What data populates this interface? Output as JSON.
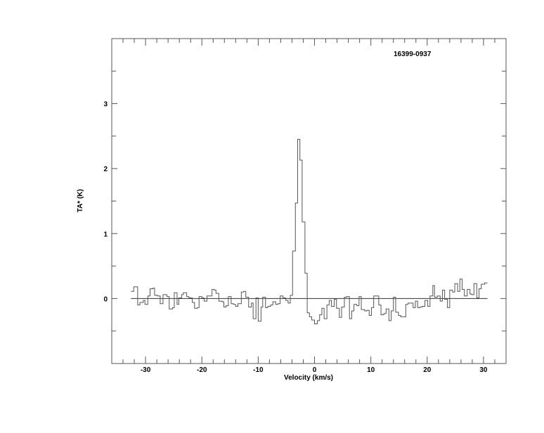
{
  "chart_data": {
    "type": "line",
    "style": "step",
    "title": "16399-0937",
    "xlabel": "Velocity (km/s)",
    "ylabel": "TA* (K)",
    "xlim": [
      -36,
      34
    ],
    "ylim": [
      -1,
      4
    ],
    "x_major_ticks": [
      -30,
      -20,
      -10,
      0,
      10,
      20,
      30
    ],
    "x_minor_tick_step": 2,
    "y_major_ticks": [
      0,
      1,
      2,
      3
    ],
    "y_minor_tick_step": 0.5,
    "grid": false,
    "baseline": 0,
    "line_color": "#555555",
    "bin_left_edges": [
      -32.6,
      -32.1,
      -31.4,
      -31.0,
      -30.4,
      -30.1,
      -29.6,
      -29.2,
      -28.7,
      -28.4,
      -27.9,
      -27.4,
      -26.9,
      -26.2,
      -25.8,
      -25.2,
      -24.9,
      -24.4,
      -24.1,
      -23.6,
      -23.3,
      -22.7,
      -22.3,
      -21.7,
      -21.3,
      -20.8,
      -20.5,
      -20.0,
      -19.6,
      -19.1,
      -18.2,
      -17.8,
      -17.5,
      -17.0,
      -16.4,
      -16.1,
      -15.7,
      -15.3,
      -14.8,
      -14.4,
      -14.0,
      -13.6,
      -13.0,
      -12.6,
      -12.2,
      -11.7,
      -11.2,
      -10.9,
      -10.4,
      -10.0,
      -9.5,
      -9.2,
      -8.7,
      -8.3,
      -7.8,
      -7.4,
      -6.9,
      -6.5,
      -6.1,
      -5.6,
      -5.1,
      -4.7,
      -4.3,
      -3.9,
      -3.4,
      -3.0,
      -2.6,
      -2.2,
      -1.7,
      -1.3,
      -0.9,
      -0.5,
      0.0,
      0.5,
      0.9,
      1.3,
      1.7,
      2.2,
      2.6,
      3.0,
      3.5,
      3.9,
      4.4,
      4.8,
      5.3,
      5.7,
      6.2,
      6.6,
      7.0,
      7.5,
      7.9,
      8.3,
      8.9,
      9.3,
      9.7,
      10.1,
      10.5,
      11.4,
      11.8,
      12.3,
      12.7,
      13.2,
      13.6,
      14.0,
      14.4,
      14.9,
      15.3,
      16.2,
      16.6,
      17.0,
      17.5,
      17.9,
      18.3,
      18.7,
      19.1,
      19.6,
      20.1,
      20.5,
      21.0,
      21.3,
      21.8,
      22.3,
      22.7,
      23.1,
      23.6,
      24.0,
      24.5,
      24.9,
      25.4,
      25.8,
      26.2,
      26.6,
      27.1,
      27.6,
      27.9,
      28.3,
      28.8,
      29.2,
      29.6,
      30.2
    ],
    "bin_right_end": 30.7,
    "values": [
      0.11,
      0.18,
      -0.1,
      -0.06,
      -0.03,
      -0.09,
      0.04,
      0.15,
      0.16,
      0.05,
      0.04,
      -0.08,
      0.06,
      0.03,
      -0.16,
      -0.14,
      0.09,
      -0.09,
      0.01,
      0.06,
      0.09,
      0.03,
      0.01,
      -0.06,
      -0.15,
      -0.14,
      0.03,
      0.01,
      -0.04,
      0.04,
      0.14,
      0.13,
      0.08,
      -0.04,
      -0.05,
      -0.13,
      -0.11,
      0.03,
      -0.08,
      -0.09,
      -0.12,
      -0.08,
      0.1,
      0.11,
      0.02,
      -0.13,
      -0.07,
      -0.31,
      0.01,
      -0.35,
      -0.13,
      0.02,
      -0.14,
      -0.12,
      -0.1,
      -0.05,
      -0.09,
      -0.08,
      0.04,
      0.01,
      -0.03,
      -0.07,
      0.05,
      0.73,
      1.47,
      2.45,
      2.13,
      1.18,
      0.39,
      -0.22,
      -0.28,
      -0.33,
      -0.39,
      -0.34,
      -0.25,
      -0.15,
      -0.31,
      -0.1,
      -0.03,
      -0.12,
      -0.01,
      -0.15,
      -0.29,
      -0.13,
      0.02,
      0.03,
      -0.31,
      -0.19,
      -0.09,
      -0.11,
      0.03,
      -0.17,
      -0.19,
      -0.18,
      -0.26,
      -0.14,
      0.04,
      -0.1,
      -0.25,
      -0.23,
      -0.16,
      -0.34,
      -0.19,
      0.02,
      -0.21,
      -0.26,
      -0.28,
      -0.09,
      -0.07,
      -0.07,
      -0.14,
      -0.04,
      -0.14,
      -0.13,
      -0.12,
      -0.03,
      -0.12,
      0.04,
      0.2,
      0.02,
      0.04,
      -0.04,
      0.13,
      -0.01,
      -0.14,
      0.13,
      0.1,
      0.23,
      0.11,
      0.3,
      0.14,
      0.04,
      0.14,
      0.07,
      0.06,
      0.23,
      0.01,
      0.15,
      0.22,
      0.24
    ]
  }
}
